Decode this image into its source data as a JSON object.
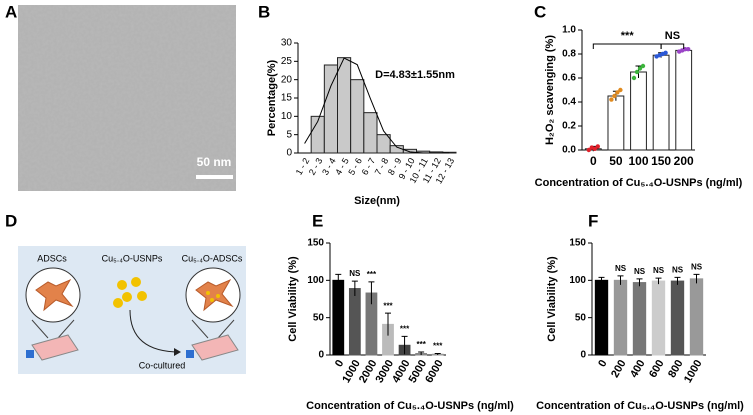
{
  "panel_labels": [
    "A",
    "B",
    "C",
    "D",
    "E",
    "F"
  ],
  "panel_a": {
    "scale_bar": "50 nm"
  },
  "panel_d": {
    "left": "ADSCs",
    "middle": "Cu₅.₄O-USNPs",
    "right": "Cu₅.₄O-ADSCs",
    "arrow": "Co-cultured"
  },
  "chart_data": [
    {
      "type": "bar",
      "categories": [
        "1 - 2",
        "2 - 3",
        "3 - 4",
        "4 - 5",
        "5 - 6",
        "6 - 7",
        "7 - 8",
        "8 - 9",
        "9 - 10",
        "10 - 11",
        "11 - 12",
        "12 - 13"
      ],
      "values": [
        0,
        10,
        24,
        26,
        20,
        11,
        5,
        2,
        1,
        0.5,
        0.3,
        0.2
      ],
      "fit_values": [
        2.6,
        8.6,
        18.3,
        25.9,
        24.1,
        14.8,
        6,
        1.6,
        0.3,
        0,
        0,
        0
      ],
      "color": "#c9c9c9",
      "xlabel": "Size(nm)",
      "ylabel": "Percentage(%)",
      "annotation": "D=4.83±1.55nm",
      "ylim": [
        0,
        30
      ],
      "yticks": [
        0,
        5,
        10,
        15,
        20,
        25,
        30
      ]
    },
    {
      "type": "bar",
      "categories": [
        "0",
        "50",
        "100",
        "150",
        "200"
      ],
      "values": [
        0.01,
        0.45,
        0.65,
        0.79,
        0.83
      ],
      "errors": [
        0.02,
        0.04,
        0.05,
        0.02,
        0.01
      ],
      "points": [
        [
          0.0,
          0.02,
          0.01,
          0.03
        ],
        [
          0.42,
          0.45,
          0.48,
          0.5
        ],
        [
          0.6,
          0.65,
          0.68,
          0.7
        ],
        [
          0.78,
          0.79,
          0.8,
          0.81
        ],
        [
          0.82,
          0.83,
          0.84,
          0.84
        ]
      ],
      "point_colors": [
        "#e0202a",
        "#e08a1e",
        "#3cb43c",
        "#2b58d6",
        "#9b44c8"
      ],
      "color": "#ffffff",
      "xlabel": "Concentration of Cu₅.₄O-USNPs (ng/ml)",
      "ylabel": "H₂O₂ scavenging (%)",
      "annotations": [
        "***",
        "NS"
      ],
      "ylim": [
        0,
        1
      ],
      "yticks": [
        {
          "value": 0,
          "label": "0.0"
        },
        {
          "value": 0.2,
          "label": "0.2"
        },
        {
          "value": 0.4,
          "label": "0.4"
        },
        {
          "value": 0.6,
          "label": "0.6"
        },
        {
          "value": 0.8,
          "label": "0.8"
        },
        {
          "value": 1,
          "label": "1.0"
        }
      ]
    },
    {
      "type": "bar",
      "categories": [
        "0",
        "1000",
        "2000",
        "3000",
        "4000",
        "5000",
        "6000"
      ],
      "values": [
        100,
        89,
        83,
        41,
        13,
        2,
        1
      ],
      "errors": [
        8,
        10,
        15,
        15,
        12,
        2,
        1
      ],
      "colors": [
        "#000000",
        "#555555",
        "#777777",
        "#bbbbbb",
        "#444444",
        "#888888",
        "#999999"
      ],
      "significance": [
        null,
        "NS",
        "***",
        "***",
        "***",
        "***",
        "***"
      ],
      "xlabel": "Concentration of Cu₅.₄O-USNPs (ng/ml)",
      "ylabel": "Cell Viability (%)",
      "ylim": [
        0,
        150
      ],
      "yticks": [
        0,
        50,
        100,
        150
      ]
    },
    {
      "type": "bar",
      "categories": [
        "0",
        "200",
        "400",
        "600",
        "800",
        "1000"
      ],
      "values": [
        100,
        100,
        97,
        99,
        99,
        102
      ],
      "errors": [
        4,
        6,
        5,
        4,
        5,
        6
      ],
      "colors": [
        "#000000",
        "#999999",
        "#777777",
        "#cccccc",
        "#555555",
        "#999999"
      ],
      "significance": [
        null,
        "NS",
        "NS",
        "NS",
        "NS",
        "NS"
      ],
      "xlabel": "Concentration of Cu₅.₄O-USNPs (ng/ml)",
      "ylabel": "Cell Viability (%)",
      "ylim": [
        0,
        150
      ],
      "yticks": [
        0,
        50,
        100,
        150
      ]
    }
  ]
}
